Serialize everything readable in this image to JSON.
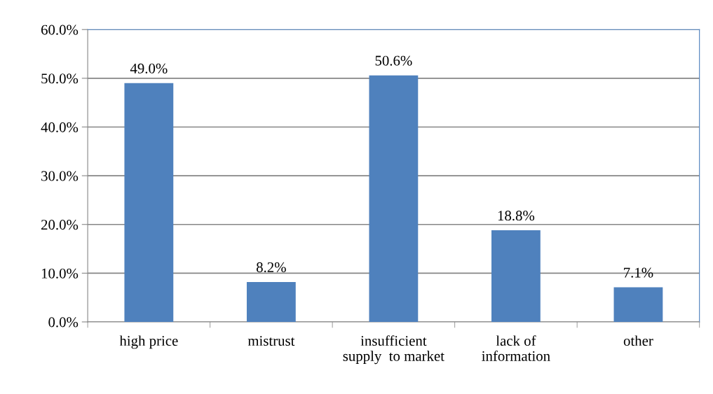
{
  "chart_data": {
    "type": "bar",
    "categories": [
      "high price",
      "mistrust",
      "insufficient\nsupply  to market",
      "lack of\ninformation",
      "other"
    ],
    "values": [
      49.0,
      8.2,
      50.6,
      18.8,
      7.1
    ],
    "value_labels": [
      "49.0%",
      "8.2%",
      "50.6%",
      "18.8%",
      "7.1%"
    ],
    "color": "#4f81bd",
    "ylim": [
      0,
      60
    ],
    "yticks": [
      {
        "value": 0,
        "label": "0.0%"
      },
      {
        "value": 10,
        "label": "10.0%"
      },
      {
        "value": 20,
        "label": "20.0%"
      },
      {
        "value": 30,
        "label": "30.0%"
      },
      {
        "value": 40,
        "label": "40.0%"
      },
      {
        "value": 50,
        "label": "50.0%"
      },
      {
        "value": 60,
        "label": "60.0%"
      }
    ],
    "grid": "y",
    "legend": false
  }
}
